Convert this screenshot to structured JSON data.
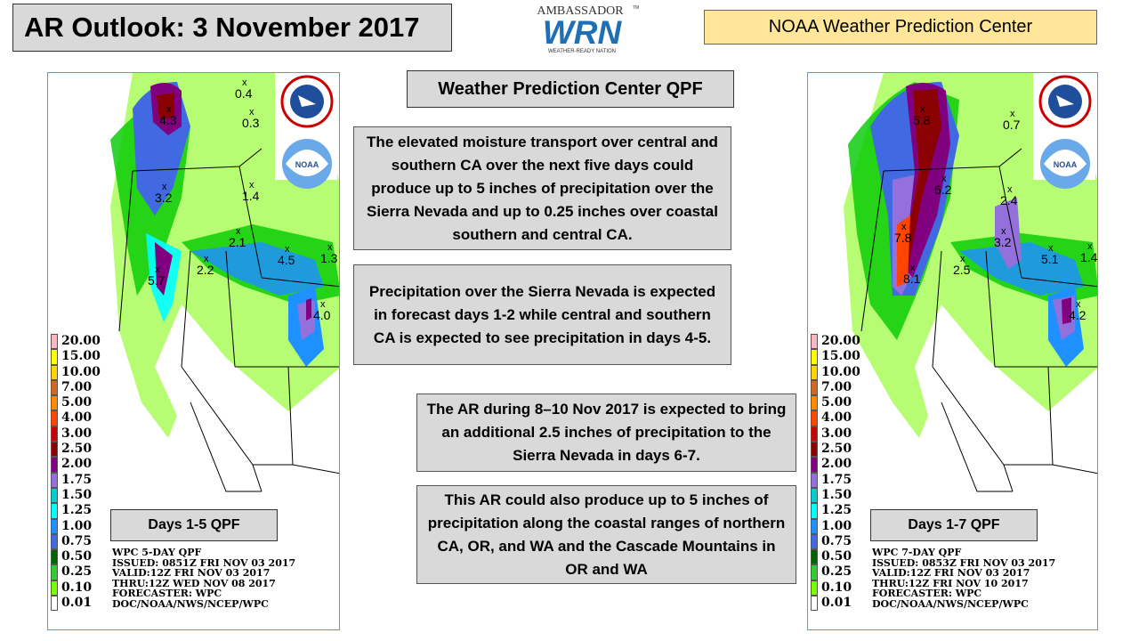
{
  "header": {
    "title": "AR Outlook: 3 November 2017",
    "org": "NOAA Weather Prediction Center",
    "logo": {
      "top": "AMBASSADOR",
      "main": "WRN",
      "sub": "WEATHER-READY NATION",
      "tm": "TM"
    }
  },
  "center": {
    "title": "Weather Prediction Center QPF",
    "paragraphs": [
      "The elevated moisture transport over central and southern CA over the next five days could produce up to 5 inches of precipitation over the Sierra Nevada and up to 0.25 inches over coastal southern and central CA.",
      "Precipitation over the Sierra Nevada is expected in forecast days 1-2 while central and southern CA is expected to see precipitation in days 4-5.",
      "The AR during 8–10 Nov 2017 is expected to bring an additional 2.5 inches of precipitation to the Sierra Nevada in days 6-7.",
      "This AR could also produce up to 5 inches of precipitation along the coastal ranges of northern CA, OR, and WA and the Cascade Mountains in OR and WA"
    ]
  },
  "legend": {
    "values": [
      "20.00",
      "15.00",
      "10.00",
      "7.00",
      "5.00",
      "4.00",
      "3.00",
      "2.50",
      "2.00",
      "1.75",
      "1.50",
      "1.25",
      "1.00",
      "0.75",
      "0.50",
      "0.25",
      "0.10",
      "0.01"
    ],
    "colors": [
      "#ffb6c1",
      "#ffff00",
      "#ffd700",
      "#d2691e",
      "#ff8c00",
      "#ff4500",
      "#cc0000",
      "#8b0000",
      "#800080",
      "#9370db",
      "#00ced1",
      "#00ffff",
      "#1e90ff",
      "#4169e1",
      "#006400",
      "#32cd32",
      "#7cfc00",
      "#ffffff"
    ]
  },
  "maps": [
    {
      "label": "Days 1-5 QPF",
      "meta": [
        "WPC 5-DAY QPF",
        "ISSUED: 0851Z FRI NOV 03 2017",
        "VALID:12Z FRI NOV 03 2017",
        "THRU:12Z WED NOV 08 2017",
        "FORECASTER: WPC",
        "DOC/NOAA/NWS/NCEP/WPC"
      ],
      "values": [
        "0.4",
        "0.3",
        "4.3",
        "3.2",
        "1.4",
        "2.1",
        "2.2",
        "4.5",
        "1.3",
        "5.7",
        "4.0"
      ]
    },
    {
      "label": "Days 1-7 QPF",
      "meta": [
        "WPC 7-DAY QPF",
        "ISSUED: 0853Z FRI NOV 03 2017",
        "VALID:12Z FRI NOV 03 2017",
        "THRU:12Z FRI NOV 10 2017",
        "FORECASTER: WPC",
        "DOC/NOAA/NWS/NCEP/WPC"
      ],
      "values": [
        "5.8",
        "0.7",
        "6.2",
        "2.4",
        "7.8",
        "3.2",
        "2.5",
        "5.1",
        "1.4",
        "8.1",
        "4.2"
      ]
    }
  ],
  "agency_logos": {
    "nws": "NATIONAL WEATHER SERVICE",
    "noaa": "NOAA"
  }
}
